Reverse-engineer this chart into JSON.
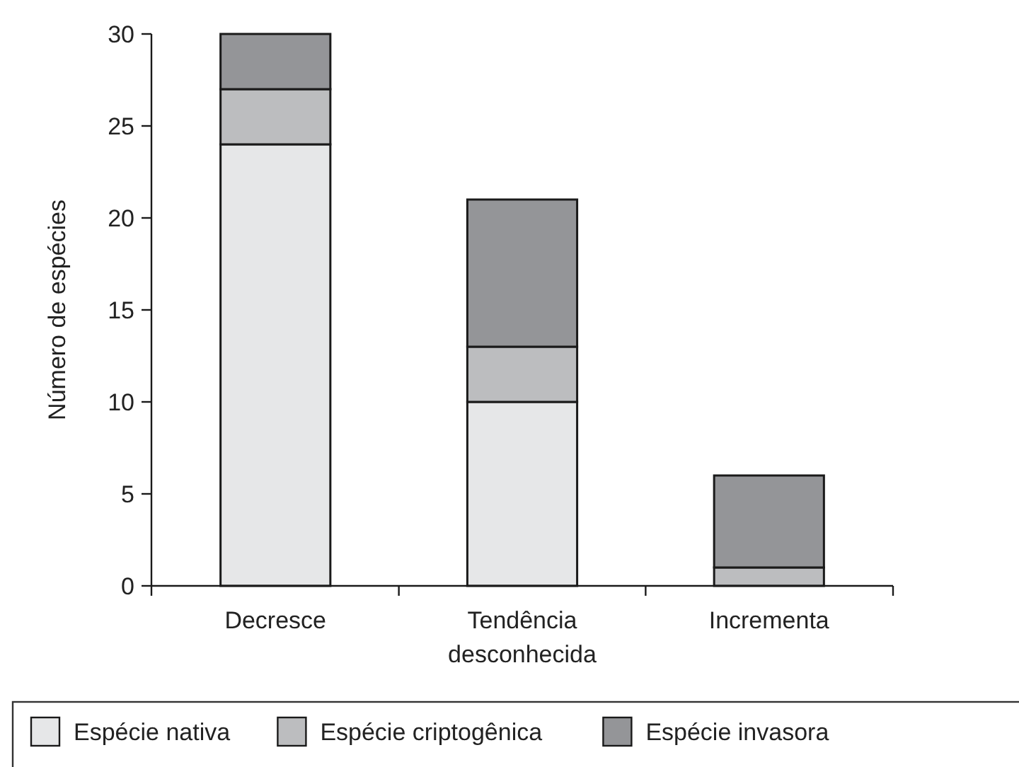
{
  "chart_data": {
    "type": "bar",
    "stacked": true,
    "ylabel": "Número de espécies",
    "categories": [
      "Decresce",
      "Tendência\ndesconhecida",
      "Incrementa"
    ],
    "series": [
      {
        "name": "Espécie nativa",
        "color": "#e6e7e8",
        "values": [
          24,
          10,
          0
        ]
      },
      {
        "name": "Espécie criptogênica",
        "color": "#bcbdbf",
        "values": [
          3,
          3,
          1
        ]
      },
      {
        "name": "Espécie invasora",
        "color": "#949598",
        "values": [
          3,
          8,
          5
        ]
      }
    ],
    "ylim": [
      0,
      30
    ],
    "yticks": [
      0,
      5,
      10,
      15,
      20,
      25,
      30
    ],
    "grid": false,
    "legend": "bottom"
  }
}
